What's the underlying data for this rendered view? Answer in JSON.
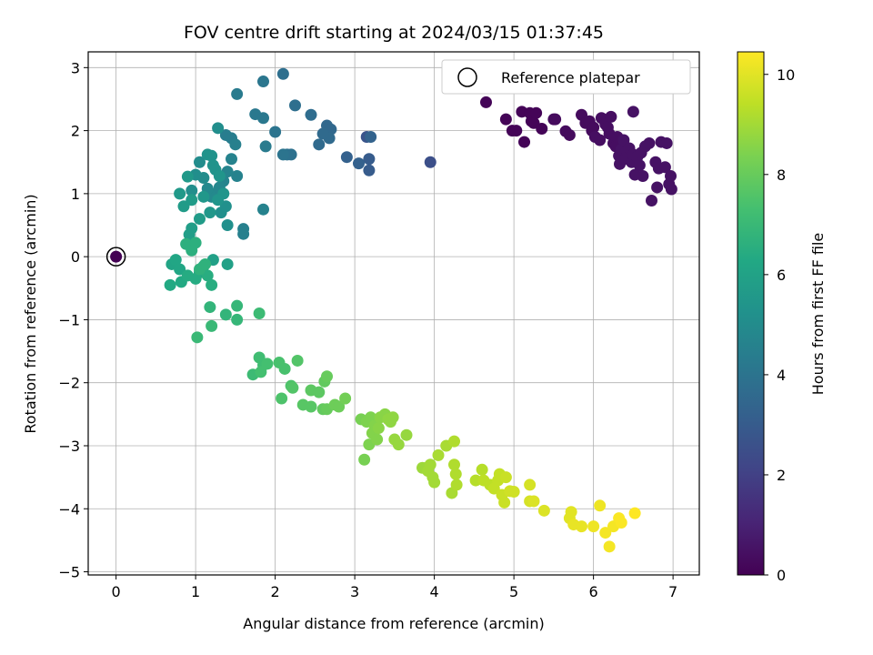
{
  "chart_data": {
    "type": "scatter",
    "title": "FOV centre drift starting at 2024/03/15 01:37:45",
    "xlabel": "Angular distance from reference (arcmin)",
    "ylabel": "Rotation from reference (arcmin)",
    "xlim": [
      -0.35,
      7.33
    ],
    "ylim": [
      -5.05,
      3.25
    ],
    "xticks": [
      "0",
      "1",
      "2",
      "3",
      "4",
      "5",
      "6",
      "7"
    ],
    "yticks": [
      "3",
      "2",
      "1",
      "0",
      "−1",
      "−2",
      "−3",
      "−4",
      "−5"
    ],
    "grid": true,
    "legend": {
      "position": "top-right",
      "entries": [
        "Reference platepar"
      ]
    },
    "reference_point": {
      "x": 0,
      "y": 0,
      "label": "Reference platepar"
    },
    "colorbar": {
      "label": "Hours from first FF file",
      "range": [
        0,
        10.45
      ],
      "ticks": [
        "0",
        "2",
        "4",
        "6",
        "8",
        "10"
      ],
      "colormap": "viridis"
    },
    "points": [
      [
        0.0,
        0.0,
        0.0
      ],
      [
        4.65,
        2.45,
        0.1
      ],
      [
        4.9,
        2.18,
        0.1
      ],
      [
        4.98,
        2.0,
        0.1
      ],
      [
        5.03,
        2.0,
        0.1
      ],
      [
        5.1,
        2.3,
        0.1
      ],
      [
        5.13,
        1.82,
        0.1
      ],
      [
        5.2,
        2.28,
        0.1
      ],
      [
        5.22,
        2.15,
        0.1
      ],
      [
        5.25,
        2.12,
        0.1
      ],
      [
        5.28,
        2.28,
        0.1
      ],
      [
        5.35,
        2.03,
        0.1
      ],
      [
        5.5,
        2.18,
        0.3
      ],
      [
        5.52,
        2.18,
        0.3
      ],
      [
        5.65,
        1.99,
        0.3
      ],
      [
        5.7,
        1.93,
        0.3
      ],
      [
        5.85,
        2.25,
        0.3
      ],
      [
        5.9,
        2.12,
        0.3
      ],
      [
        5.95,
        2.15,
        0.3
      ],
      [
        5.98,
        2.0,
        0.3
      ],
      [
        6.0,
        2.05,
        0.3
      ],
      [
        6.02,
        1.9,
        0.4
      ],
      [
        6.08,
        1.85,
        0.4
      ],
      [
        6.1,
        2.2,
        0.4
      ],
      [
        6.15,
        2.1,
        0.4
      ],
      [
        6.18,
        2.05,
        0.4
      ],
      [
        6.2,
        1.95,
        0.4
      ],
      [
        6.22,
        2.22,
        0.4
      ],
      [
        6.25,
        1.8,
        0.4
      ],
      [
        6.28,
        1.75,
        0.4
      ],
      [
        6.3,
        1.9,
        0.4
      ],
      [
        6.32,
        1.6,
        0.5
      ],
      [
        6.33,
        1.47,
        0.5
      ],
      [
        6.35,
        1.7,
        0.5
      ],
      [
        6.38,
        1.85,
        0.5
      ],
      [
        6.4,
        1.55,
        0.5
      ],
      [
        6.42,
        1.68,
        0.5
      ],
      [
        6.45,
        1.72,
        0.5
      ],
      [
        6.48,
        1.5,
        0.5
      ],
      [
        6.5,
        2.3,
        0.5
      ],
      [
        6.5,
        1.62,
        0.5
      ],
      [
        6.52,
        1.3,
        0.5
      ],
      [
        6.55,
        1.58,
        0.5
      ],
      [
        6.58,
        1.45,
        0.5
      ],
      [
        6.6,
        1.65,
        0.5
      ],
      [
        6.62,
        1.28,
        0.5
      ],
      [
        6.65,
        1.75,
        0.5
      ],
      [
        6.7,
        1.8,
        0.5
      ],
      [
        6.73,
        0.89,
        0.5
      ],
      [
        6.78,
        1.5,
        0.5
      ],
      [
        6.8,
        1.1,
        0.5
      ],
      [
        6.82,
        1.4,
        0.5
      ],
      [
        6.85,
        1.82,
        0.5
      ],
      [
        6.9,
        1.42,
        0.5
      ],
      [
        6.92,
        1.8,
        0.5
      ],
      [
        6.95,
        1.15,
        0.5
      ],
      [
        6.97,
        1.28,
        0.5
      ],
      [
        6.98,
        1.07,
        0.5
      ],
      [
        3.95,
        1.5,
        2.5
      ],
      [
        3.15,
        1.9,
        2.7
      ],
      [
        3.18,
        1.55,
        3.0
      ],
      [
        3.18,
        1.37,
        3.0
      ],
      [
        2.9,
        1.58,
        3.2
      ],
      [
        3.05,
        1.48,
        3.2
      ],
      [
        3.2,
        1.9,
        3.3
      ],
      [
        2.65,
        2.08,
        3.5
      ],
      [
        2.7,
        2.02,
        3.5
      ],
      [
        2.68,
        1.88,
        3.6
      ],
      [
        2.6,
        1.95,
        3.6
      ],
      [
        2.55,
        1.78,
        3.6
      ],
      [
        2.45,
        2.25,
        3.7
      ],
      [
        2.25,
        2.4,
        3.8
      ],
      [
        2.1,
        2.9,
        3.8
      ],
      [
        2.15,
        1.62,
        3.9
      ],
      [
        2.2,
        1.62,
        3.9
      ],
      [
        2.1,
        1.62,
        4.0
      ],
      [
        2.0,
        1.98,
        4.0
      ],
      [
        1.85,
        2.78,
        4.1
      ],
      [
        1.75,
        2.26,
        4.2
      ],
      [
        1.85,
        2.2,
        4.2
      ],
      [
        1.88,
        1.75,
        4.3
      ],
      [
        1.52,
        2.58,
        4.3
      ],
      [
        1.38,
        1.93,
        4.4
      ],
      [
        1.45,
        1.88,
        4.4
      ],
      [
        1.5,
        1.78,
        4.5
      ],
      [
        1.6,
        0.44,
        4.5
      ],
      [
        1.6,
        0.36,
        4.5
      ],
      [
        1.52,
        1.28,
        4.6
      ],
      [
        1.45,
        1.55,
        4.6
      ],
      [
        1.85,
        0.75,
        4.6
      ],
      [
        1.4,
        1.35,
        4.7
      ],
      [
        1.35,
        1.2,
        4.7
      ],
      [
        1.3,
        1.1,
        4.8
      ],
      [
        1.25,
        1.0,
        4.8
      ],
      [
        1.2,
        0.95,
        4.9
      ],
      [
        1.15,
        1.08,
        4.9
      ],
      [
        1.1,
        1.25,
        5.0
      ],
      [
        1.05,
        1.5,
        5.0
      ],
      [
        1.0,
        1.3,
        5.1
      ],
      [
        0.95,
        1.05,
        5.1
      ],
      [
        1.28,
        2.04,
        5.1
      ],
      [
        1.32,
        0.7,
        5.2
      ],
      [
        1.38,
        0.8,
        5.2
      ],
      [
        1.4,
        0.5,
        5.2
      ],
      [
        1.15,
        1.62,
        5.3
      ],
      [
        1.2,
        1.6,
        5.3
      ],
      [
        1.22,
        1.45,
        5.3
      ],
      [
        1.25,
        1.38,
        5.3
      ],
      [
        1.3,
        1.28,
        5.4
      ],
      [
        1.35,
        1.0,
        5.4
      ],
      [
        1.28,
        0.9,
        5.4
      ],
      [
        1.18,
        0.7,
        5.5
      ],
      [
        1.1,
        0.95,
        5.5
      ],
      [
        0.9,
        1.27,
        5.6
      ],
      [
        0.8,
        1.0,
        5.6
      ],
      [
        0.85,
        0.8,
        5.7
      ],
      [
        0.95,
        0.9,
        5.7
      ],
      [
        1.05,
        0.6,
        5.7
      ],
      [
        0.95,
        0.45,
        5.8
      ],
      [
        0.92,
        0.35,
        5.8
      ],
      [
        1.4,
        -0.12,
        5.9
      ],
      [
        1.22,
        -0.05,
        5.9
      ],
      [
        1.1,
        -0.15,
        6.0
      ],
      [
        1.05,
        -0.25,
        6.1
      ],
      [
        0.7,
        -0.12,
        6.1
      ],
      [
        0.75,
        -0.05,
        6.2
      ],
      [
        0.8,
        -0.2,
        6.2
      ],
      [
        0.68,
        -0.45,
        6.3
      ],
      [
        0.82,
        -0.4,
        6.3
      ],
      [
        0.9,
        -0.3,
        6.4
      ],
      [
        1.0,
        -0.35,
        6.4
      ],
      [
        1.15,
        -0.3,
        6.5
      ],
      [
        1.2,
        -0.45,
        6.5
      ],
      [
        0.88,
        0.2,
        6.6
      ],
      [
        0.95,
        0.1,
        6.6
      ],
      [
        1.0,
        0.22,
        6.6
      ],
      [
        1.05,
        -0.2,
        6.7
      ],
      [
        1.12,
        -0.12,
        6.7
      ],
      [
        1.18,
        -0.8,
        6.8
      ],
      [
        1.38,
        -0.92,
        6.8
      ],
      [
        1.52,
        -0.78,
        6.9
      ],
      [
        1.52,
        -1.0,
        6.9
      ],
      [
        1.2,
        -1.1,
        7.0
      ],
      [
        1.02,
        -1.28,
        7.0
      ],
      [
        1.8,
        -0.9,
        7.1
      ],
      [
        1.72,
        -1.87,
        7.1
      ],
      [
        1.8,
        -1.6,
        7.2
      ],
      [
        1.85,
        -1.72,
        7.2
      ],
      [
        1.82,
        -1.83,
        7.3
      ],
      [
        1.9,
        -1.7,
        7.3
      ],
      [
        2.05,
        -1.68,
        7.4
      ],
      [
        2.12,
        -1.78,
        7.4
      ],
      [
        2.08,
        -2.25,
        7.5
      ],
      [
        2.2,
        -2.05,
        7.5
      ],
      [
        2.22,
        -2.08,
        7.6
      ],
      [
        2.28,
        -1.65,
        7.6
      ],
      [
        2.35,
        -2.35,
        7.7
      ],
      [
        2.45,
        -2.38,
        7.7
      ],
      [
        2.45,
        -2.12,
        7.8
      ],
      [
        2.55,
        -2.15,
        7.8
      ],
      [
        2.6,
        -2.42,
        7.9
      ],
      [
        2.62,
        -1.98,
        7.9
      ],
      [
        2.65,
        -1.9,
        8.0
      ],
      [
        2.65,
        -2.42,
        8.0
      ],
      [
        2.75,
        -2.35,
        8.1
      ],
      [
        2.8,
        -2.38,
        8.1
      ],
      [
        2.88,
        -2.25,
        8.2
      ],
      [
        3.08,
        -2.58,
        8.3
      ],
      [
        3.12,
        -3.22,
        8.3
      ],
      [
        3.15,
        -2.62,
        8.4
      ],
      [
        3.18,
        -2.98,
        8.4
      ],
      [
        3.2,
        -2.55,
        8.4
      ],
      [
        3.22,
        -2.8,
        8.5
      ],
      [
        3.25,
        -2.68,
        8.5
      ],
      [
        3.28,
        -2.9,
        8.5
      ],
      [
        3.3,
        -2.72,
        8.6
      ],
      [
        3.32,
        -2.55,
        8.6
      ],
      [
        3.38,
        -2.5,
        8.6
      ],
      [
        3.42,
        -2.58,
        8.7
      ],
      [
        3.45,
        -2.62,
        8.7
      ],
      [
        3.48,
        -2.55,
        8.7
      ],
      [
        3.5,
        -2.9,
        8.8
      ],
      [
        3.55,
        -2.98,
        8.8
      ],
      [
        3.65,
        -2.83,
        8.8
      ],
      [
        3.85,
        -3.35,
        8.9
      ],
      [
        3.9,
        -3.35,
        8.9
      ],
      [
        3.92,
        -3.4,
        9.0
      ],
      [
        3.95,
        -3.3,
        9.0
      ],
      [
        3.98,
        -3.5,
        9.0
      ],
      [
        4.0,
        -3.58,
        9.0
      ],
      [
        4.05,
        -3.15,
        9.1
      ],
      [
        4.15,
        -3.0,
        9.1
      ],
      [
        4.22,
        -3.75,
        9.1
      ],
      [
        4.25,
        -3.3,
        9.2
      ],
      [
        4.25,
        -2.93,
        9.2
      ],
      [
        4.27,
        -3.45,
        9.2
      ],
      [
        4.28,
        -3.62,
        9.2
      ],
      [
        4.52,
        -3.55,
        9.3
      ],
      [
        4.6,
        -3.38,
        9.3
      ],
      [
        4.62,
        -3.55,
        9.4
      ],
      [
        4.7,
        -3.62,
        9.4
      ],
      [
        4.75,
        -3.68,
        9.5
      ],
      [
        4.8,
        -3.55,
        9.5
      ],
      [
        4.82,
        -3.45,
        9.5
      ],
      [
        4.85,
        -3.78,
        9.6
      ],
      [
        4.88,
        -3.9,
        9.6
      ],
      [
        4.9,
        -3.5,
        9.6
      ],
      [
        4.95,
        -3.72,
        9.7
      ],
      [
        5.0,
        -3.73,
        9.7
      ],
      [
        5.2,
        -3.62,
        9.8
      ],
      [
        5.2,
        -3.88,
        9.8
      ],
      [
        5.25,
        -3.88,
        9.9
      ],
      [
        5.38,
        -4.03,
        9.9
      ],
      [
        5.7,
        -4.15,
        10.0
      ],
      [
        5.72,
        -4.05,
        10.0
      ],
      [
        5.75,
        -4.25,
        10.1
      ],
      [
        5.85,
        -4.28,
        10.1
      ],
      [
        6.0,
        -4.28,
        10.2
      ],
      [
        6.08,
        -3.95,
        10.2
      ],
      [
        6.15,
        -4.38,
        10.3
      ],
      [
        6.2,
        -4.6,
        10.3
      ],
      [
        6.25,
        -4.28,
        10.3
      ],
      [
        6.32,
        -4.15,
        10.4
      ],
      [
        6.35,
        -4.22,
        10.4
      ],
      [
        6.52,
        -4.07,
        10.45
      ]
    ]
  }
}
